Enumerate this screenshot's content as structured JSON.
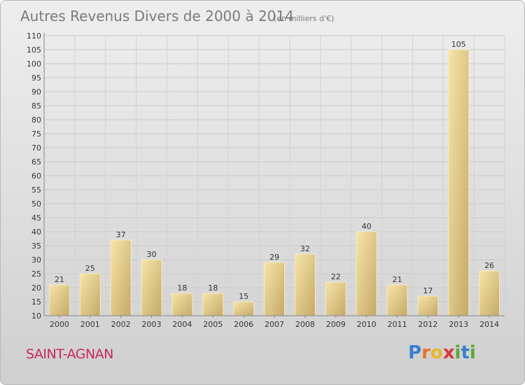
{
  "chart_data": {
    "type": "bar",
    "title": "Autres Revenus Divers de 2000 à 2014",
    "subtitle": "(en milliers d'€)",
    "categories": [
      "2000",
      "2001",
      "2002",
      "2003",
      "2004",
      "2005",
      "2006",
      "2007",
      "2008",
      "2009",
      "2010",
      "2011",
      "2012",
      "2013",
      "2014"
    ],
    "values": [
      21,
      25,
      37,
      30,
      18,
      18,
      15,
      29,
      32,
      22,
      40,
      21,
      17,
      105,
      26
    ],
    "ylim": [
      10,
      110
    ],
    "yticks": [
      10,
      15,
      20,
      25,
      30,
      35,
      40,
      45,
      50,
      55,
      60,
      65,
      70,
      75,
      80,
      85,
      90,
      95,
      100,
      105,
      110
    ],
    "grid": true,
    "bar_color_light": "#f4dea0",
    "bar_color_dark": "#c4a866"
  },
  "commune": "SAINT-AGNAN",
  "logo": {
    "letters": [
      "P",
      "r",
      "o",
      "x",
      "i",
      "t",
      "i"
    ],
    "colors": [
      "#3a7fd0",
      "#e8732a",
      "#e8b52a",
      "#d83a3a",
      "#5aa832",
      "#3a7fd0",
      "#5aa832"
    ]
  }
}
